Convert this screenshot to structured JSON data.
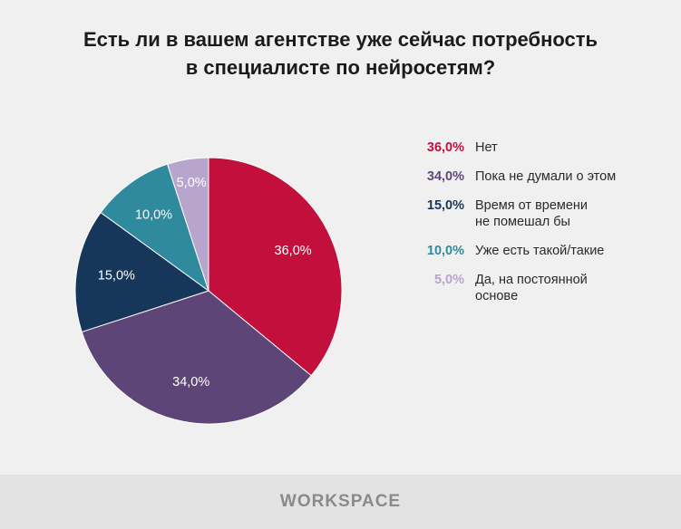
{
  "chart_data": {
    "type": "pie",
    "title": "Есть ли в вашем агентстве уже сейчас потребность\nв специалисте по нейросетям?",
    "categories": [
      "Нет",
      "Пока не думали о этом",
      "Время от времени\nне помешал бы",
      "Уже есть такой/такие",
      "Да, на постоянной\nосновe"
    ],
    "values": [
      36,
      34,
      15,
      10,
      5
    ],
    "value_labels": [
      "36,0%",
      "34,0%",
      "15,0%",
      "10,0%",
      "5,0%"
    ],
    "colors": [
      "#c20f3b",
      "#5d4677",
      "#16365a",
      "#2f8a9d",
      "#b8a5cd"
    ],
    "footer": "WORKSPACE"
  }
}
